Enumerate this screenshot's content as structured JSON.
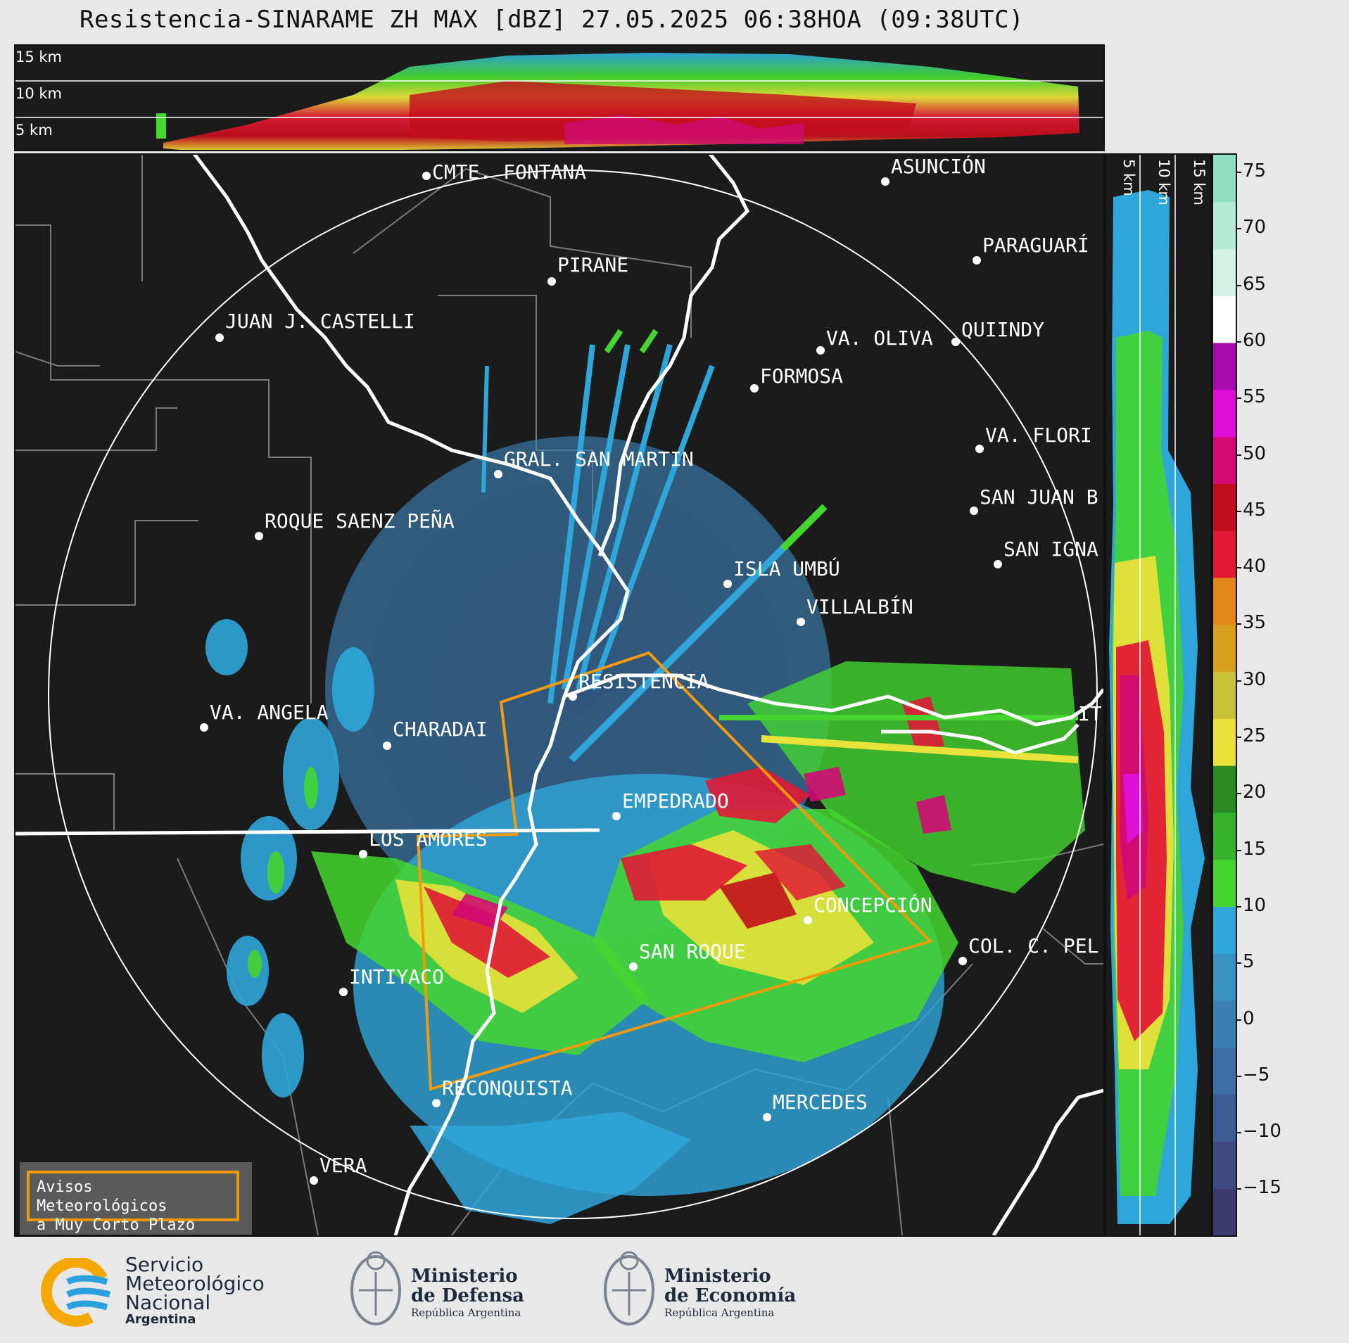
{
  "title": "Resistencia-SINARAME ZH MAX [dBZ] 27.05.2025 06:38HOA (09:38UTC)",
  "cross_section_top": {
    "altitude_labels": [
      "15 km",
      "10 km",
      "5 km"
    ]
  },
  "cross_section_right": {
    "altitude_labels": [
      "5 km",
      "10 km",
      "15 km"
    ]
  },
  "colorbar": {
    "unit": "dBZ",
    "ticks": [
      "75",
      "70",
      "65",
      "60",
      "55",
      "50",
      "45",
      "40",
      "35",
      "30",
      "25",
      "20",
      "15",
      "10",
      "5",
      "0",
      "−5",
      "−10",
      "−15"
    ],
    "colors": [
      "#3d3b6e",
      "#3f4b82",
      "#3d5c93",
      "#3a6ea4",
      "#3a80b5",
      "#3990c3",
      "#2fa6da",
      "#44d62f",
      "#36b22d",
      "#2a8a24",
      "#e8e23a",
      "#c8c236",
      "#d9a01f",
      "#e3871a",
      "#e01a35",
      "#c20e1c",
      "#d10a74",
      "#e00fd8",
      "#a70bb0",
      "#ffffff",
      "#d4f2e5",
      "#b4ead4",
      "#8fdfc2"
    ]
  },
  "cities": [
    {
      "name": "CMTE. FONTANA"
    },
    {
      "name": "ASUNCIÓN"
    },
    {
      "name": "PARAGUARÍ"
    },
    {
      "name": "PIRANE"
    },
    {
      "name": "JUAN J. CASTELLI"
    },
    {
      "name": "VA. OLIVA"
    },
    {
      "name": "QUIINDY"
    },
    {
      "name": "FORMOSA"
    },
    {
      "name": "VA. FLORI"
    },
    {
      "name": "GRAL. SAN MARTIN"
    },
    {
      "name": "SAN JUAN B"
    },
    {
      "name": "ROQUE SAENZ PEÑA"
    },
    {
      "name": "SAN IGNA"
    },
    {
      "name": "ISLA UMBÚ"
    },
    {
      "name": "VILLALBÍN"
    },
    {
      "name": "RESISTENCIA"
    },
    {
      "name": "VA. ANGELA"
    },
    {
      "name": "CHARADAI"
    },
    {
      "name": "IT"
    },
    {
      "name": "EMPEDRADO"
    },
    {
      "name": "LOS AMORES"
    },
    {
      "name": "CONCEPCIÓN"
    },
    {
      "name": "SAN ROQUE"
    },
    {
      "name": "COL. C. PEL"
    },
    {
      "name": "INTIYACO"
    },
    {
      "name": "RECONQUISTA"
    },
    {
      "name": "MERCEDES"
    },
    {
      "name": "VERA"
    }
  ],
  "warning_box": {
    "line1": "Avisos Meteorológicos",
    "line2": "a Muy Corto Plazo"
  },
  "logos": {
    "smn": {
      "line1": "Servicio",
      "line2": "Meteorológico",
      "line3": "Nacional",
      "line4": "Argentina"
    },
    "defensa": {
      "line1": "Ministerio",
      "line2": "de Defensa",
      "line3": "República Argentina"
    },
    "economia": {
      "line1": "Ministerio",
      "line2": "de Economía",
      "line3": "República Argentina"
    }
  }
}
